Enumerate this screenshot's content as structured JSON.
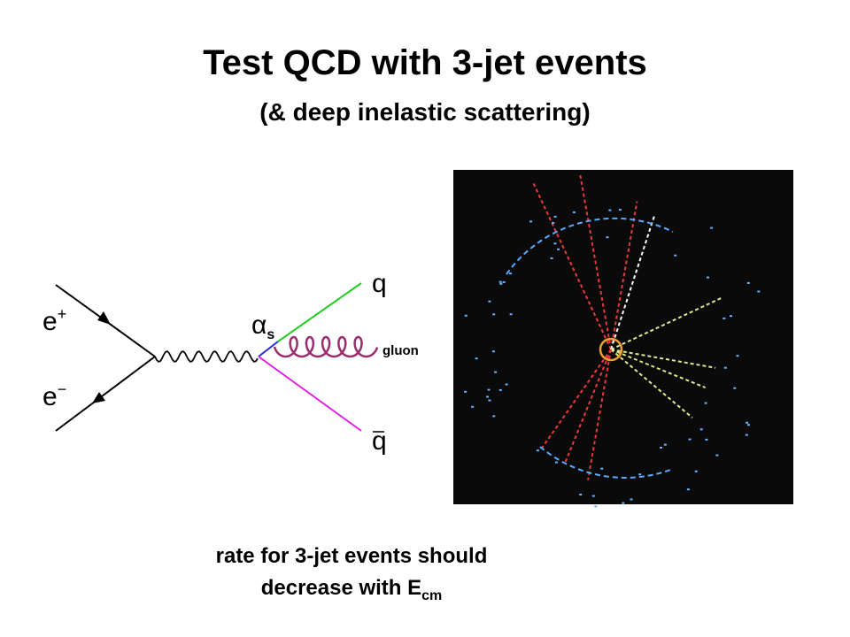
{
  "title": "Test QCD with 3-jet events",
  "subtitle": "(& deep inelastic scattering)",
  "diagram": {
    "labels": {
      "positron": "e",
      "positron_charge": "+",
      "electron": "e",
      "electron_charge": "−",
      "quark": "q",
      "antiquark": "q",
      "coupling": "α",
      "coupling_sub": "s",
      "gluon": "gluon"
    }
  },
  "caption": {
    "line1": "rate for 3-jet events should",
    "line2": "decrease with E",
    "line2_sub": "cm"
  }
}
